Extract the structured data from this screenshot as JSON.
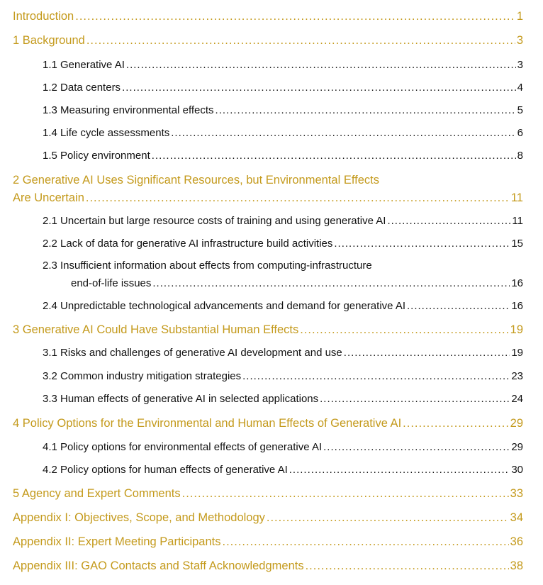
{
  "colors": {
    "heading": "#c49a1c",
    "subentry": "#111111"
  },
  "entries": [
    {
      "level": 1,
      "title": "Introduction",
      "page": "1"
    },
    {
      "level": 1,
      "title": "1 Background",
      "page": "3"
    },
    {
      "level": 2,
      "title": "1.1 Generative AI",
      "page": "3"
    },
    {
      "level": 2,
      "title": "1.2 Data centers",
      "page": "4"
    },
    {
      "level": 2,
      "title": "1.3 Measuring environmental effects",
      "page": "5"
    },
    {
      "level": 2,
      "title": "1.4 Life cycle assessments",
      "page": "6"
    },
    {
      "level": 2,
      "title": "1.5 Policy environment",
      "page": "8"
    },
    {
      "level": 1,
      "title_line1": "2 Generative AI Uses Significant Resources, but Environmental Effects",
      "title": "Are Uncertain",
      "page": "11"
    },
    {
      "level": 2,
      "title": "2.1 Uncertain but large resource costs of training and using generative AI",
      "page": "11"
    },
    {
      "level": 2,
      "title": "2.2 Lack of data for generative AI infrastructure build activities",
      "page": "15"
    },
    {
      "level": 2,
      "title_line1": "2.3 Insufficient information about effects from computing-infrastructure",
      "title": "end-of-life issues",
      "page": "16"
    },
    {
      "level": 2,
      "title": "2.4 Unpredictable technological advancements and demand for generative AI",
      "page": "16"
    },
    {
      "level": 1,
      "title": "3 Generative AI Could Have Substantial Human Effects",
      "page": "19"
    },
    {
      "level": 2,
      "title": "3.1 Risks and challenges of generative AI development and use",
      "page": "19"
    },
    {
      "level": 2,
      "title": "3.2 Common industry mitigation strategies",
      "page": "23"
    },
    {
      "level": 2,
      "title": "3.3 Human effects of generative AI in selected applications",
      "page": "24"
    },
    {
      "level": 1,
      "title": "4 Policy Options for the Environmental and Human Effects of Generative AI",
      "page": "29"
    },
    {
      "level": 2,
      "title": "4.1 Policy options for environmental effects of generative AI",
      "page": "29"
    },
    {
      "level": 2,
      "title": "4.2 Policy options for human effects of generative AI",
      "page": "30"
    },
    {
      "level": 1,
      "title": "5 Agency and Expert Comments",
      "page": "33"
    },
    {
      "level": 1,
      "title": "Appendix I: Objectives, Scope, and Methodology",
      "page": "34"
    },
    {
      "level": 1,
      "title": "Appendix II: Expert Meeting Participants",
      "page": "36"
    },
    {
      "level": 1,
      "title": "Appendix III: GAO Contacts and Staff Acknowledgments",
      "page": "38"
    }
  ]
}
